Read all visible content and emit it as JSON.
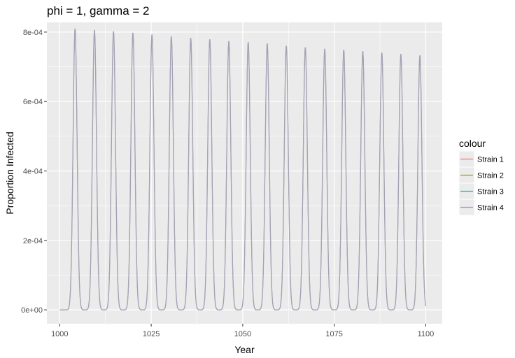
{
  "chart_data": {
    "type": "line",
    "title": "phi = 1, gamma = 2",
    "xlabel": "Year",
    "ylabel": "Proportion Infected",
    "xlim": [
      996.5,
      1104.5
    ],
    "ylim": [
      -4e-05,
      0.000828
    ],
    "x_ticks": [
      1000,
      1025,
      1050,
      1075,
      1100
    ],
    "x_tick_labels": [
      "1000",
      "1025",
      "1050",
      "1075",
      "1100"
    ],
    "y_ticks": [
      0,
      0.0002,
      0.0004,
      0.0006,
      0.0008
    ],
    "y_tick_labels": [
      "0e+00",
      "2e-04",
      "4e-04",
      "6e-04",
      "8e-04"
    ],
    "grid": true,
    "panel_background": "#ebebeb",
    "legend": {
      "title": "colour",
      "position": "right"
    },
    "x_range": [
      1000,
      1100
    ],
    "baseline": 0,
    "peak_width_years": 0.55,
    "peaks": [
      {
        "x": 1004.2,
        "y": 0.00081
      },
      {
        "x": 1009.5,
        "y": 0.000806
      },
      {
        "x": 1014.7,
        "y": 0.000802
      },
      {
        "x": 1020.0,
        "y": 0.000798
      },
      {
        "x": 1025.2,
        "y": 0.000793
      },
      {
        "x": 1030.5,
        "y": 0.000788
      },
      {
        "x": 1035.8,
        "y": 0.000783
      },
      {
        "x": 1041.0,
        "y": 0.000779
      },
      {
        "x": 1046.2,
        "y": 0.000774
      },
      {
        "x": 1051.5,
        "y": 0.000771
      },
      {
        "x": 1056.7,
        "y": 0.000767
      },
      {
        "x": 1061.9,
        "y": 0.00076
      },
      {
        "x": 1067.1,
        "y": 0.000756
      },
      {
        "x": 1072.4,
        "y": 0.000752
      },
      {
        "x": 1077.6,
        "y": 0.000749
      },
      {
        "x": 1082.8,
        "y": 0.000745
      },
      {
        "x": 1088.0,
        "y": 0.000741
      },
      {
        "x": 1093.2,
        "y": 0.000737
      },
      {
        "x": 1098.4,
        "y": 0.000733
      }
    ],
    "series": [
      {
        "name": "Strain 1",
        "color": "#f8766d"
      },
      {
        "name": "Strain 2",
        "color": "#7cae00"
      },
      {
        "name": "Strain 3",
        "color": "#00bfc4"
      },
      {
        "name": "Strain 4",
        "color": "#c77cff"
      }
    ],
    "overlap_color": "#a6a1b5"
  }
}
